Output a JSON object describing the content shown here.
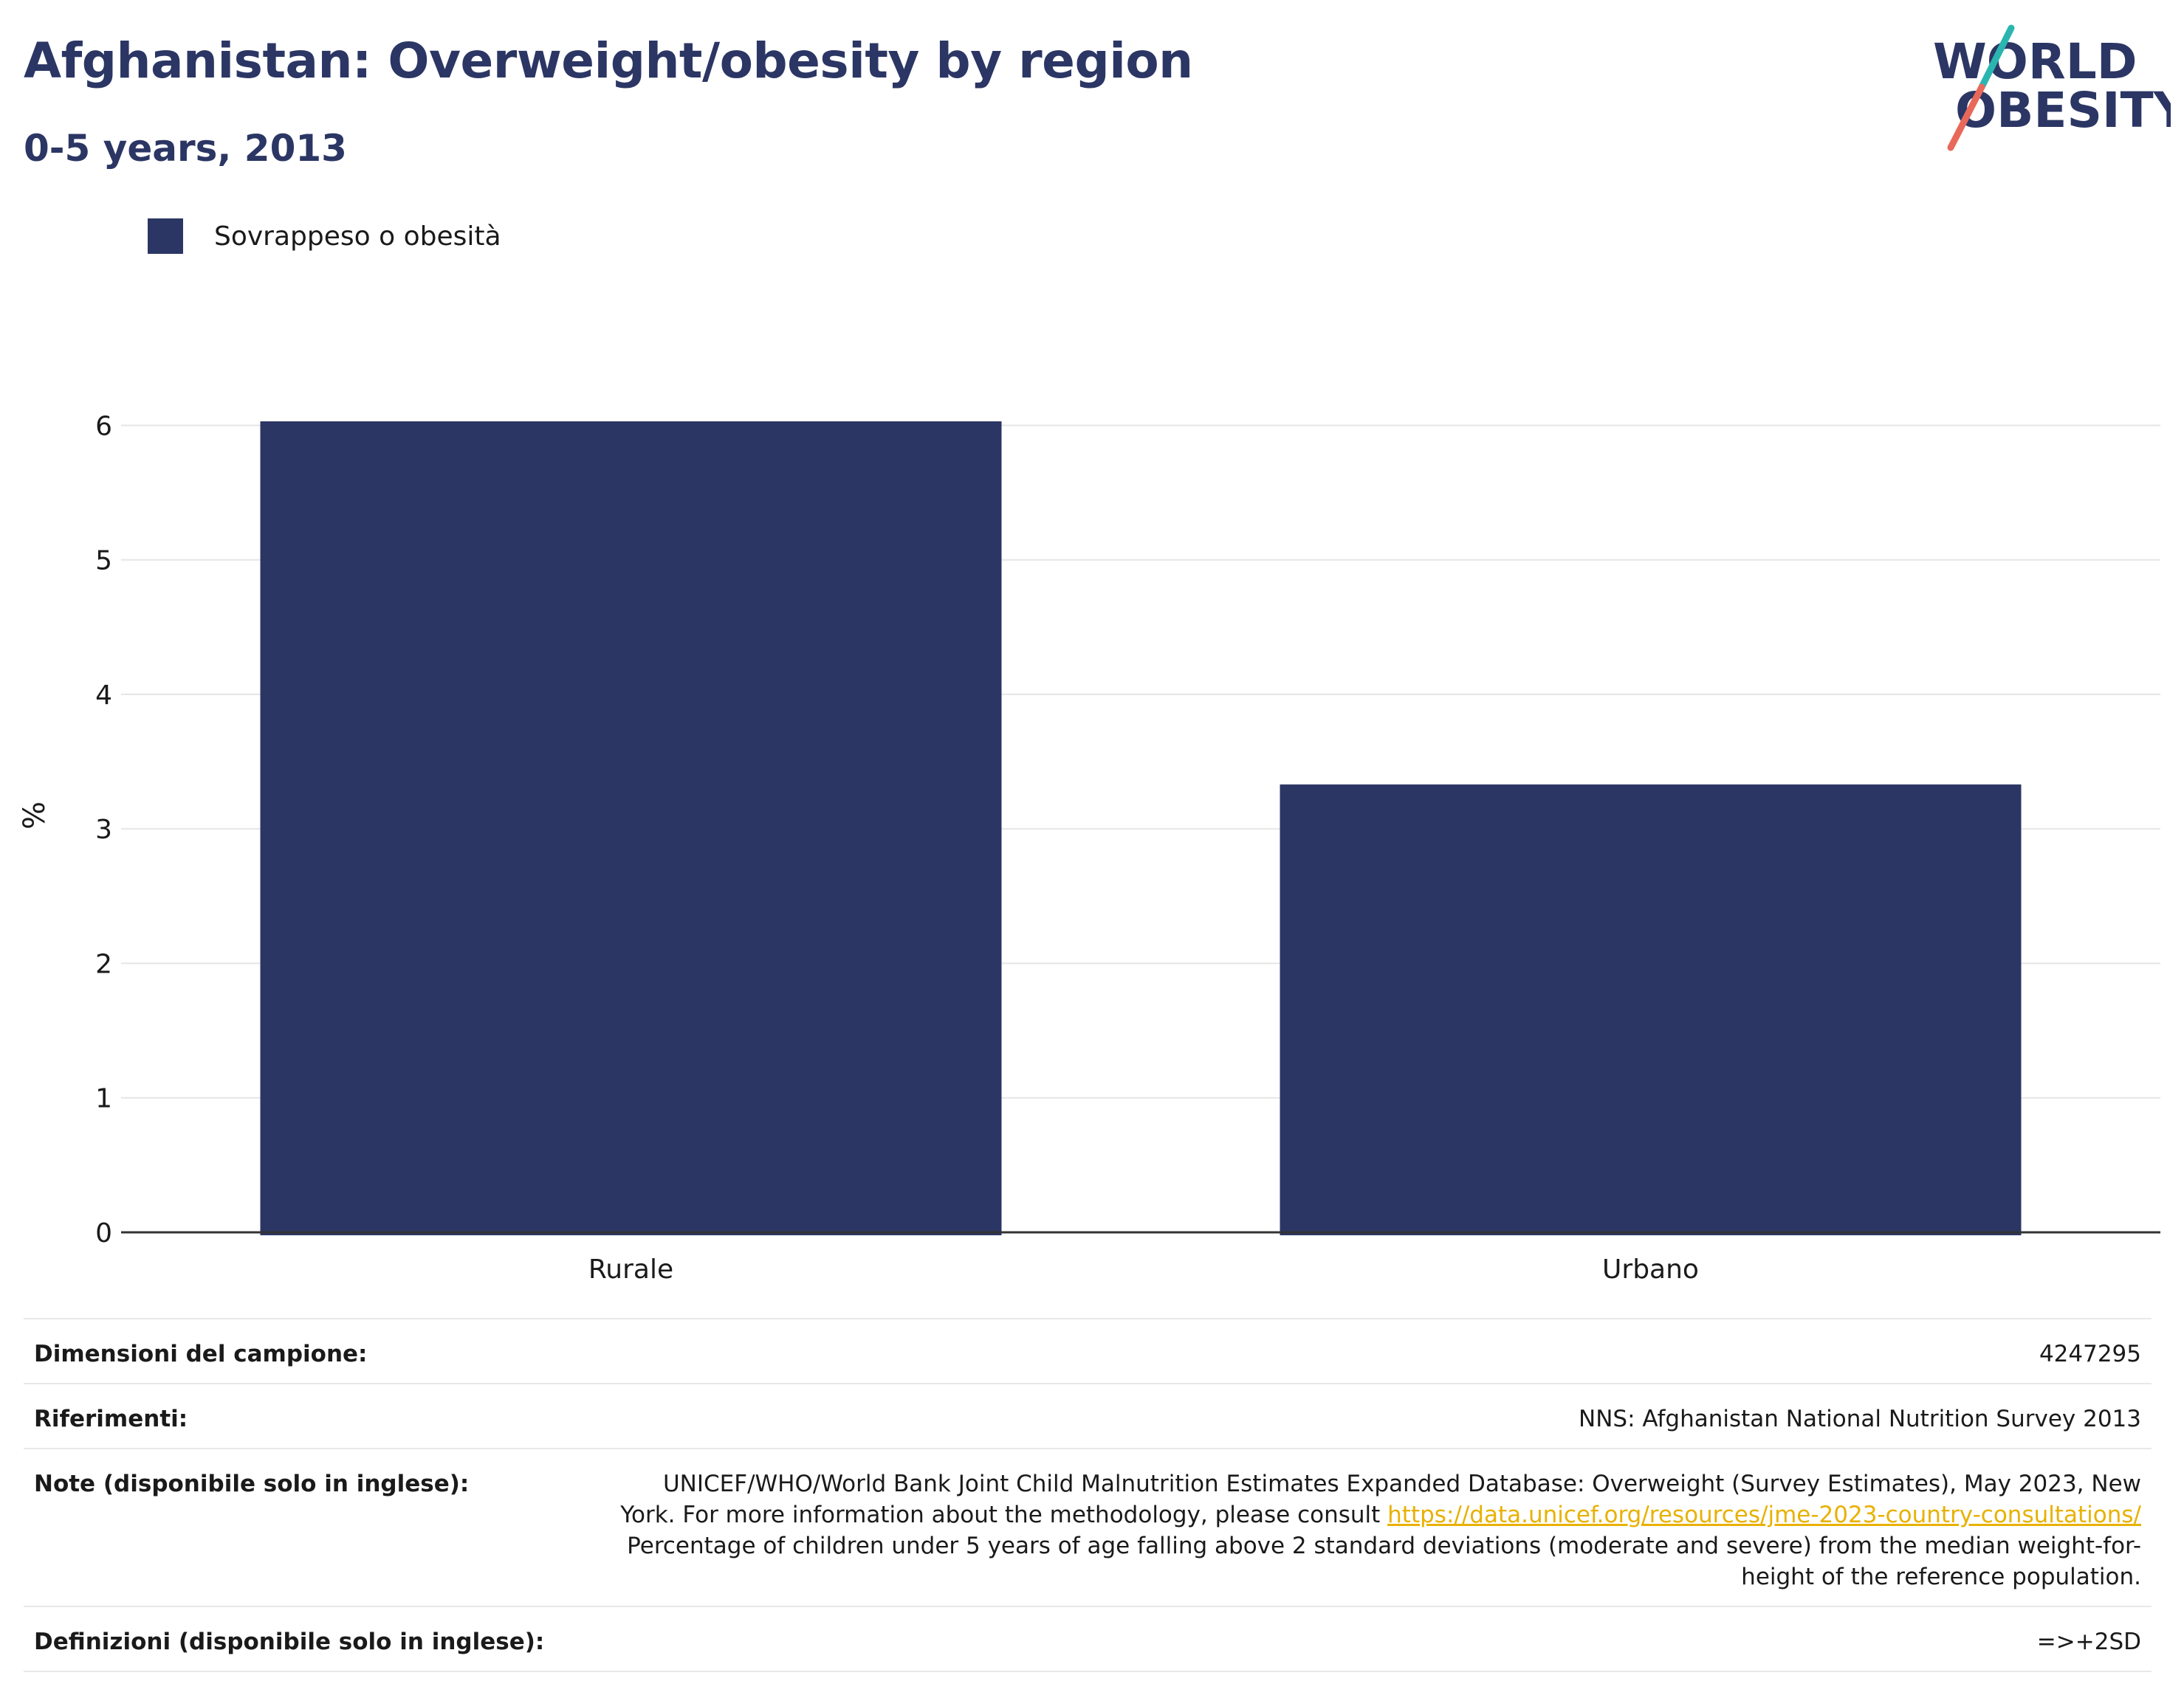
{
  "header": {
    "title": "Afghanistan: Overweight/obesity by region",
    "subtitle": "0-5 years, 2013"
  },
  "logo": {
    "line1": "WORLD",
    "line2": "OBESITY",
    "colors": {
      "text": "#2b3664",
      "slash_top": "#2ab5b0",
      "slash_bottom": "#e8685a"
    }
  },
  "legend": {
    "label": "Sovrappeso o obesità",
    "color": "#2b3664"
  },
  "chart_data": {
    "type": "bar",
    "categories": [
      "Rurale",
      "Urbano"
    ],
    "series": [
      {
        "name": "Sovrappeso o obesità",
        "values": [
          6.03,
          3.33
        ],
        "color": "#2b3664"
      }
    ],
    "ylabel": "%",
    "xlabel": "",
    "ylim": [
      0,
      6.2
    ],
    "yticks": [
      0,
      1,
      2,
      3,
      4,
      5,
      6
    ],
    "grid": true,
    "legend_position": "top-left"
  },
  "info": {
    "sample_label": "Dimensioni del campione:",
    "sample_value": "4247295",
    "references_label": "Riferimenti:",
    "references_value": "NNS: Afghanistan National Nutrition Survey 2013",
    "notes_label": "Note (disponibile solo in inglese):",
    "notes_text_1": "UNICEF/WHO/World Bank Joint Child Malnutrition Estimates Expanded Database: Overweight (Survey Estimates), May 2023, New York. For more information about the methodology, please consult",
    "notes_link": "https://data.unicef.org/resources/jme-2023-country-consultations/",
    "notes_text_2": "Percentage of children under 5 years of age falling above 2 standard deviations (moderate and severe) from the median weight-for-height of the reference population.",
    "definitions_label": "Definizioni (disponibile solo in inglese):",
    "definitions_value": "=>+2SD"
  }
}
